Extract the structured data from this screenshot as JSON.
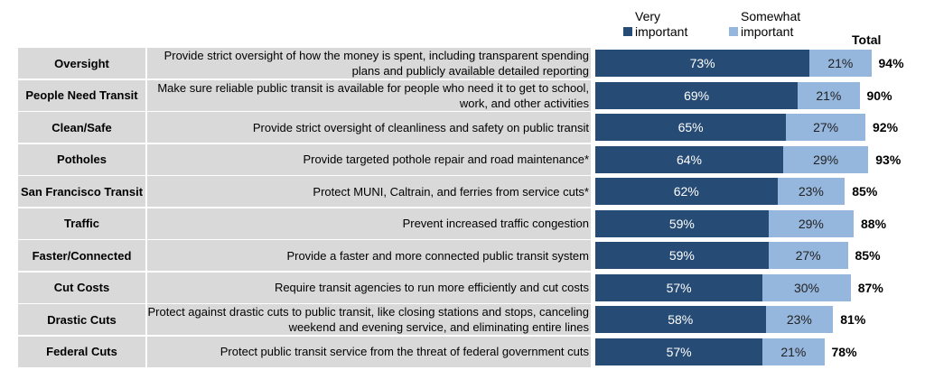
{
  "chart_data": {
    "type": "bar",
    "stacked": true,
    "orientation": "horizontal",
    "legend": [
      "Very important",
      "Somewhat important"
    ],
    "total_label": "Total",
    "colors": {
      "very": "#264b75",
      "somewhat": "#95b6dd"
    },
    "rows": [
      {
        "label": "Oversight",
        "desc": "Provide strict oversight of how the money is spent, including transparent spending plans and publicly available detailed reporting",
        "very": 73,
        "somewhat": 21,
        "total": 94
      },
      {
        "label": "People Need Transit",
        "desc": "Make sure reliable public transit is available for people who need it to get to school, work, and other activities",
        "very": 69,
        "somewhat": 21,
        "total": 90
      },
      {
        "label": "Clean/Safe",
        "desc": "Provide strict oversight of cleanliness and safety on public transit",
        "very": 65,
        "somewhat": 27,
        "total": 92
      },
      {
        "label": "Potholes",
        "desc": "Provide targeted pothole repair and road maintenance*",
        "very": 64,
        "somewhat": 29,
        "total": 93
      },
      {
        "label": "San Francisco Transit",
        "desc": "Protect MUNI, Caltrain, and ferries from service cuts*",
        "very": 62,
        "somewhat": 23,
        "total": 85
      },
      {
        "label": "Traffic",
        "desc": "Prevent increased traffic congestion",
        "very": 59,
        "somewhat": 29,
        "total": 88
      },
      {
        "label": "Faster/Connected",
        "desc": "Provide a faster and more connected public transit system",
        "very": 59,
        "somewhat": 27,
        "total": 85
      },
      {
        "label": "Cut Costs",
        "desc": "Require transit agencies to run more efficiently and cut costs",
        "very": 57,
        "somewhat": 30,
        "total": 87
      },
      {
        "label": "Drastic Cuts",
        "desc": "Protect against drastic cuts to public transit, like closing stations and stops, canceling weekend and evening service, and eliminating entire lines",
        "very": 58,
        "somewhat": 23,
        "total": 81
      },
      {
        "label": "Federal Cuts",
        "desc": "Protect public transit service from the threat of federal government cuts",
        "very": 57,
        "somewhat": 21,
        "total": 78
      }
    ]
  }
}
